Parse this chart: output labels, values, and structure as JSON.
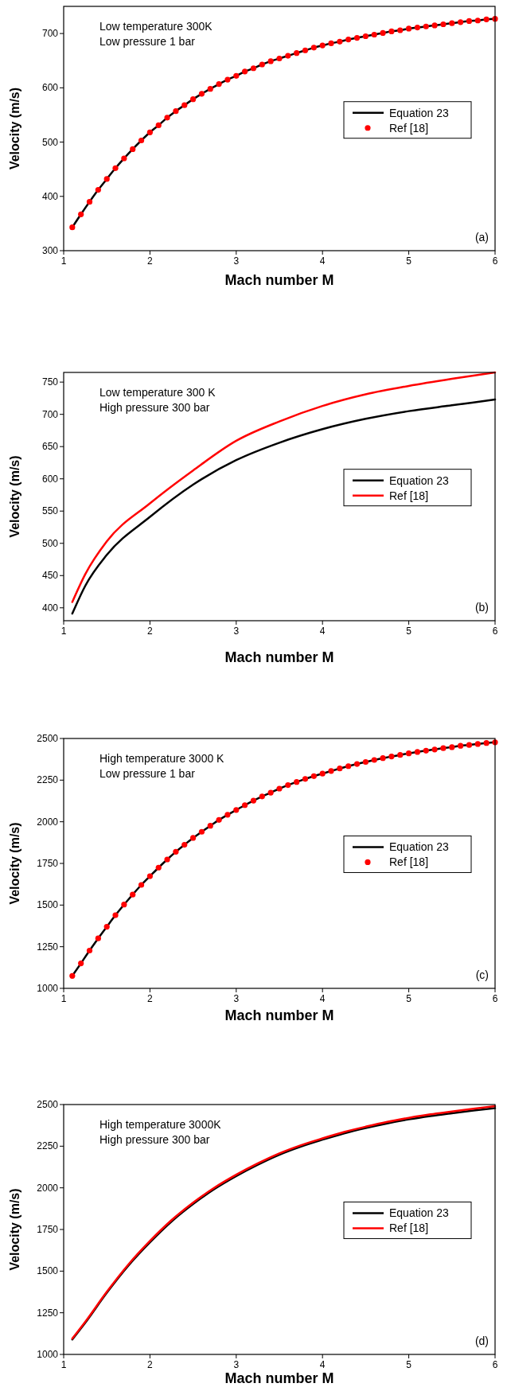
{
  "chart_data": [
    {
      "type": "line",
      "xlabel": "Mach number M",
      "ylabel": "Velocity (m/s)",
      "xlim": [
        1,
        6
      ],
      "ylim": [
        300,
        750
      ],
      "xticks": [
        1,
        2,
        3,
        4,
        5,
        6
      ],
      "yticks": [
        300,
        400,
        500,
        600,
        700
      ],
      "legend": "right",
      "annotations": [
        "Low temperature 300K",
        "Low pressure 1 bar",
        "(a)"
      ],
      "series": [
        {
          "name": "Equation 23",
          "color": "#000000",
          "x": [
            1.1,
            1.2,
            1.3,
            1.4,
            1.5,
            1.6,
            1.7,
            1.8,
            1.9,
            2.0,
            2.1,
            2.2,
            2.3,
            2.4,
            2.5,
            2.6,
            2.7,
            2.8,
            2.9,
            3.0,
            3.1,
            3.2,
            3.3,
            3.4,
            3.5,
            3.6,
            3.7,
            3.8,
            3.9,
            4.0,
            4.1,
            4.2,
            4.3,
            4.4,
            4.5,
            4.6,
            4.7,
            4.8,
            4.9,
            5.0,
            5.1,
            5.2,
            5.3,
            5.4,
            5.5,
            5.6,
            5.7,
            5.8,
            5.9,
            6.0
          ],
          "values": [
            343,
            367,
            390,
            412,
            432,
            452,
            470,
            487,
            503,
            518,
            531,
            545,
            557,
            568,
            579,
            589,
            598,
            607,
            615,
            622,
            630,
            636,
            643,
            649,
            654,
            659,
            664,
            669,
            674,
            678,
            682,
            685,
            689,
            692,
            695,
            698,
            701,
            704,
            706,
            709,
            711,
            713,
            715,
            717,
            719,
            721,
            723,
            724,
            726,
            727
          ]
        },
        {
          "name": "Ref [18]",
          "type": "scatter",
          "marker": "circle",
          "color": "#ff0000",
          "x": [
            1.1,
            1.2,
            1.3,
            1.4,
            1.5,
            1.6,
            1.7,
            1.8,
            1.9,
            2.0,
            2.1,
            2.2,
            2.3,
            2.4,
            2.5,
            2.6,
            2.7,
            2.8,
            2.9,
            3.0,
            3.1,
            3.2,
            3.3,
            3.4,
            3.5,
            3.6,
            3.7,
            3.8,
            3.9,
            4.0,
            4.1,
            4.2,
            4.3,
            4.4,
            4.5,
            4.6,
            4.7,
            4.8,
            4.9,
            5.0,
            5.1,
            5.2,
            5.3,
            5.4,
            5.5,
            5.6,
            5.7,
            5.8,
            5.9,
            6.0
          ],
          "values": [
            343,
            367,
            390,
            412,
            432,
            452,
            470,
            487,
            503,
            518,
            531,
            545,
            557,
            568,
            579,
            589,
            598,
            607,
            615,
            622,
            630,
            636,
            643,
            649,
            654,
            659,
            664,
            669,
            674,
            678,
            682,
            685,
            689,
            692,
            695,
            698,
            701,
            704,
            706,
            709,
            711,
            713,
            715,
            717,
            719,
            721,
            723,
            724,
            726,
            727
          ]
        }
      ]
    },
    {
      "type": "line",
      "xlabel": "Mach number M",
      "ylabel": "Velocity (m/s)",
      "xlim": [
        1,
        6
      ],
      "ylim": [
        380,
        765
      ],
      "xticks": [
        1,
        2,
        3,
        4,
        5,
        6
      ],
      "yticks": [
        400,
        450,
        500,
        550,
        600,
        650,
        700,
        750
      ],
      "legend": "right",
      "annotations": [
        "Low temperature 300 K",
        "High pressure 300 bar",
        "(b)"
      ],
      "series": [
        {
          "name": "Equation 23",
          "color": "#000000",
          "x": [
            1.1,
            1.25,
            1.5,
            2,
            2.5,
            3,
            3.5,
            4,
            4.5,
            5,
            5.5,
            6
          ],
          "values": [
            391,
            434,
            482,
            541,
            591,
            629,
            656,
            677,
            693,
            705,
            714,
            723
          ]
        },
        {
          "name": "Ref [18]",
          "color": "#ff0000",
          "x": [
            1.1,
            1.25,
            1.5,
            2,
            2.5,
            3,
            3.5,
            4,
            4.5,
            5,
            5.5,
            6
          ],
          "values": [
            409,
            452,
            503,
            562,
            613,
            659,
            689,
            713,
            731,
            744,
            755,
            765
          ]
        }
      ]
    },
    {
      "type": "line",
      "xlabel": "Mach number M",
      "ylabel": "Velocity (m/s)",
      "xlim": [
        1,
        6
      ],
      "ylim": [
        1000,
        2500
      ],
      "xticks": [
        1,
        2,
        3,
        4,
        5,
        6
      ],
      "yticks": [
        1000,
        1250,
        1500,
        1750,
        2000,
        2250,
        2500
      ],
      "legend": "right",
      "annotations": [
        "High temperature 3000 K",
        "Low pressure 1 bar",
        "(c)"
      ],
      "series": [
        {
          "name": "Equation 23",
          "color": "#000000",
          "x": [
            1.1,
            1.2,
            1.3,
            1.4,
            1.5,
            1.6,
            1.7,
            1.8,
            1.9,
            2.0,
            2.1,
            2.2,
            2.3,
            2.4,
            2.5,
            2.6,
            2.7,
            2.8,
            2.9,
            3.0,
            3.1,
            3.2,
            3.3,
            3.4,
            3.5,
            3.6,
            3.7,
            3.8,
            3.9,
            4.0,
            4.1,
            4.2,
            4.3,
            4.4,
            4.5,
            4.6,
            4.7,
            4.8,
            4.9,
            5.0,
            5.1,
            5.2,
            5.3,
            5.4,
            5.5,
            5.6,
            5.7,
            5.8,
            5.9,
            6.0
          ],
          "values": [
            1075,
            1150,
            1227,
            1300,
            1370,
            1439,
            1503,
            1563,
            1621,
            1673,
            1725,
            1774,
            1820,
            1862,
            1903,
            1940,
            1976,
            2011,
            2042,
            2071,
            2100,
            2127,
            2152,
            2175,
            2199,
            2220,
            2239,
            2257,
            2274,
            2289,
            2305,
            2320,
            2334,
            2347,
            2359,
            2371,
            2382,
            2392,
            2401,
            2411,
            2419,
            2427,
            2434,
            2442,
            2448,
            2456,
            2461,
            2467,
            2473,
            2477
          ]
        },
        {
          "name": "Ref [18]",
          "type": "scatter",
          "marker": "circle",
          "color": "#ff0000",
          "x": [
            1.1,
            1.2,
            1.3,
            1.4,
            1.5,
            1.6,
            1.7,
            1.8,
            1.9,
            2.0,
            2.1,
            2.2,
            2.3,
            2.4,
            2.5,
            2.6,
            2.7,
            2.8,
            2.9,
            3.0,
            3.1,
            3.2,
            3.3,
            3.4,
            3.5,
            3.6,
            3.7,
            3.8,
            3.9,
            4.0,
            4.1,
            4.2,
            4.3,
            4.4,
            4.5,
            4.6,
            4.7,
            4.8,
            4.9,
            5.0,
            5.1,
            5.2,
            5.3,
            5.4,
            5.5,
            5.6,
            5.7,
            5.8,
            5.9,
            6.0
          ],
          "values": [
            1075,
            1150,
            1227,
            1300,
            1370,
            1439,
            1503,
            1563,
            1621,
            1673,
            1725,
            1774,
            1820,
            1862,
            1903,
            1940,
            1976,
            2011,
            2042,
            2071,
            2100,
            2127,
            2152,
            2175,
            2199,
            2220,
            2239,
            2257,
            2274,
            2289,
            2305,
            2320,
            2334,
            2347,
            2359,
            2371,
            2382,
            2392,
            2401,
            2411,
            2419,
            2427,
            2434,
            2442,
            2448,
            2456,
            2461,
            2467,
            2473,
            2477
          ]
        }
      ]
    },
    {
      "type": "line",
      "xlabel": "Mach number M",
      "ylabel": "Velocity (m/s)",
      "xlim": [
        1,
        6
      ],
      "ylim": [
        1000,
        2500
      ],
      "xticks": [
        1,
        2,
        3,
        4,
        5,
        6
      ],
      "yticks": [
        1000,
        1250,
        1500,
        1750,
        2000,
        2250,
        2500
      ],
      "legend": "right",
      "annotations": [
        "High temperature 3000K",
        "High pressure 300 bar",
        "(d)"
      ],
      "series": [
        {
          "name": "Equation 23",
          "color": "#000000",
          "x": [
            1.1,
            1.25,
            1.5,
            1.75,
            2,
            2.25,
            2.5,
            2.75,
            3,
            3.25,
            3.5,
            3.75,
            4,
            4.25,
            4.5,
            4.75,
            5,
            5.25,
            5.5,
            5.75,
            6
          ],
          "values": [
            1090,
            1190,
            1370,
            1533,
            1673,
            1798,
            1903,
            1994,
            2071,
            2139,
            2199,
            2248,
            2289,
            2327,
            2359,
            2387,
            2411,
            2431,
            2448,
            2464,
            2478
          ]
        },
        {
          "name": "Ref [18]",
          "color": "#ff0000",
          "x": [
            1.1,
            1.25,
            1.5,
            1.75,
            2,
            2.25,
            2.5,
            2.75,
            3,
            3.25,
            3.5,
            3.75,
            4,
            4.25,
            4.5,
            4.75,
            5,
            5.25,
            5.5,
            5.75,
            6
          ],
          "values": [
            1095,
            1196,
            1376,
            1540,
            1681,
            1806,
            1911,
            2002,
            2079,
            2147,
            2207,
            2256,
            2297,
            2335,
            2367,
            2396,
            2420,
            2441,
            2458,
            2475,
            2490
          ]
        }
      ]
    }
  ]
}
